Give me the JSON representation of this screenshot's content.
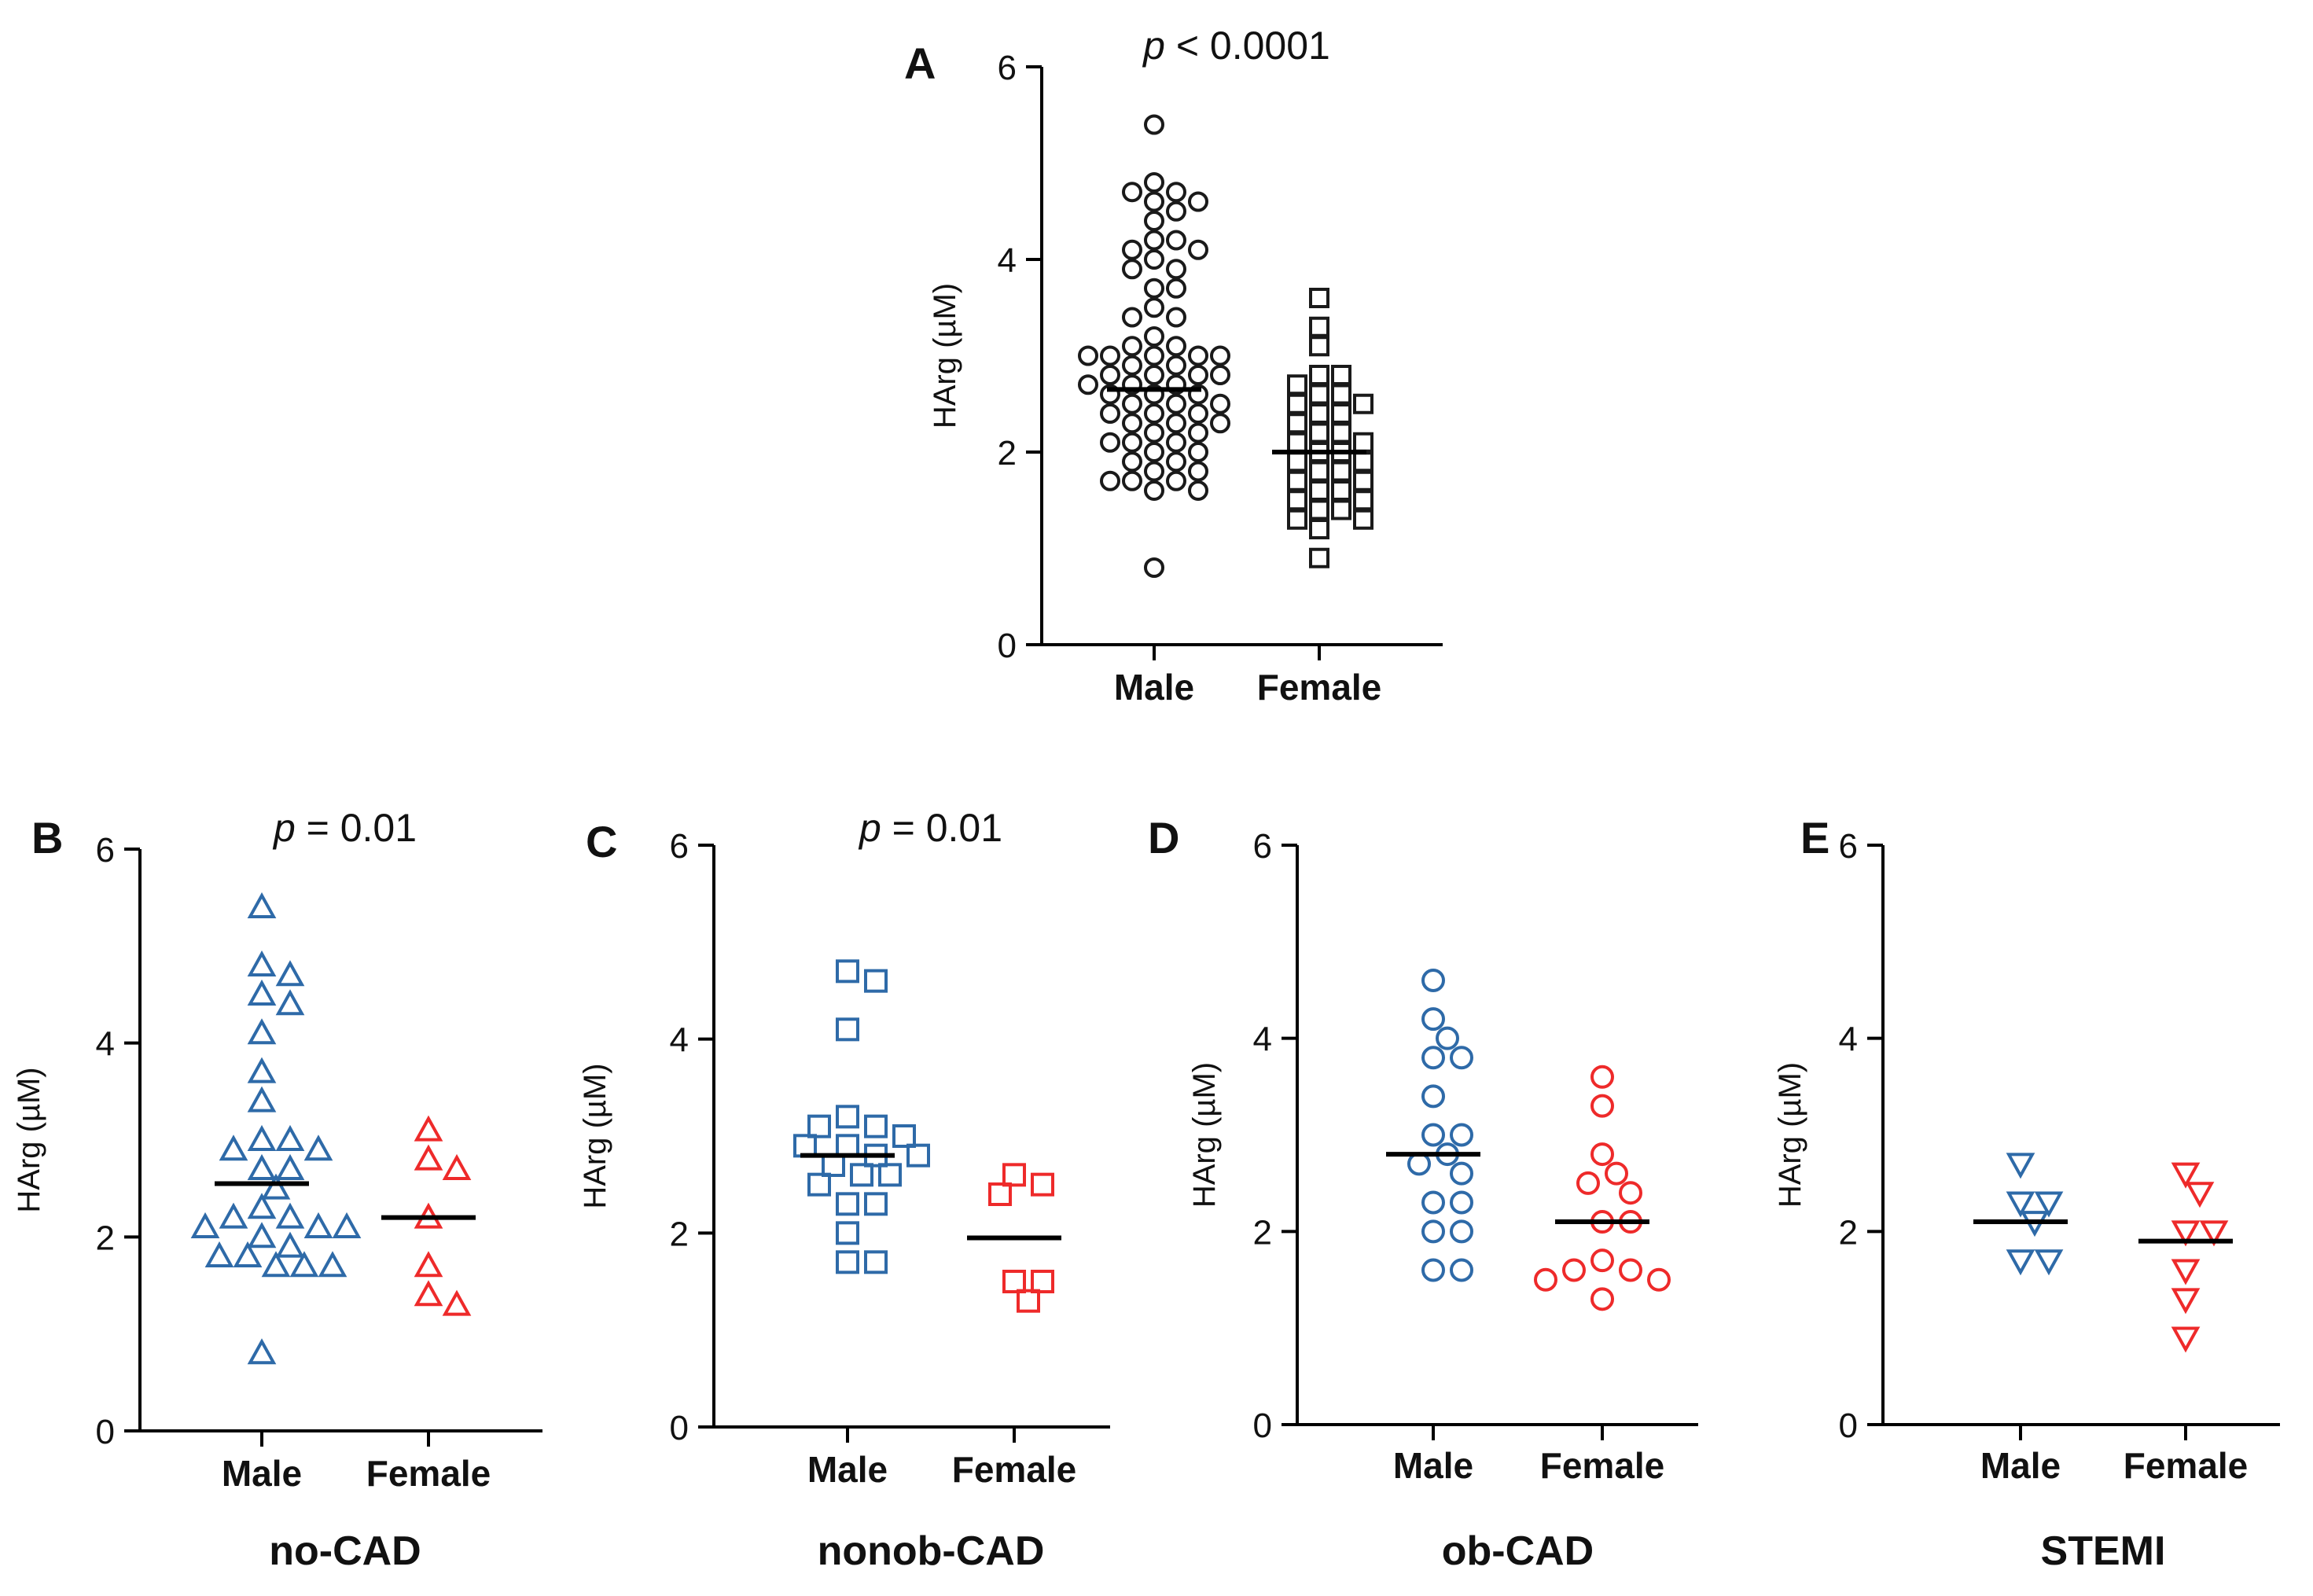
{
  "colors": {
    "axis": "#000000",
    "A": "#1a1a1a",
    "male": "#2e6aa8",
    "female": "#ee2a2a",
    "line": "#000000"
  },
  "chart_data": [
    {
      "id": "A",
      "type": "scatter",
      "panel_label": "A",
      "title": "",
      "xlabel": "",
      "ylabel": "HArg (µM)",
      "ylim": [
        0,
        6
      ],
      "yticks": [
        "0",
        "2",
        "4",
        "6"
      ],
      "categories": [
        "Male",
        "Female"
      ],
      "pvalue": {
        "p": "p",
        "rest": " < 0.0001"
      },
      "marker": "circle",
      "series": [
        {
          "name": "Male",
          "marker": "circle",
          "color": "A",
          "mean": 2.65,
          "values": [
            5.4,
            4.8,
            4.7,
            4.7,
            4.6,
            4.6,
            4.5,
            4.4,
            4.2,
            4.2,
            4.1,
            4.1,
            4.0,
            3.9,
            3.9,
            3.7,
            3.7,
            3.5,
            3.4,
            3.4,
            3.2,
            3.1,
            3.1,
            3.0,
            3.0,
            3.0,
            3.0,
            3.0,
            2.9,
            2.9,
            2.8,
            2.8,
            2.8,
            2.8,
            2.7,
            2.7,
            2.7,
            2.6,
            2.6,
            2.6,
            2.5,
            2.5,
            2.5,
            2.4,
            2.4,
            2.4,
            2.3,
            2.3,
            2.3,
            2.2,
            2.2,
            2.1,
            2.1,
            2.1,
            2.0,
            2.0,
            1.9,
            1.9,
            1.8,
            1.8,
            1.7,
            1.7,
            1.7,
            1.6,
            1.6,
            0.8
          ]
        },
        {
          "name": "Female",
          "marker": "square",
          "color": "A",
          "mean": 2.0,
          "values": [
            3.6,
            3.3,
            3.1,
            2.8,
            2.8,
            2.7,
            2.6,
            2.6,
            2.5,
            2.5,
            2.4,
            2.4,
            2.3,
            2.2,
            2.2,
            2.1,
            2.1,
            2.0,
            2.0,
            1.9,
            1.9,
            1.8,
            1.8,
            1.7,
            1.7,
            1.6,
            1.6,
            1.5,
            1.5,
            1.4,
            1.4,
            1.3,
            1.3,
            1.2,
            0.9
          ]
        }
      ]
    },
    {
      "id": "B",
      "type": "scatter",
      "panel_label": "B",
      "title": "no-CAD",
      "xlabel": "",
      "ylabel": "HArg (µM)",
      "ylim": [
        0,
        6
      ],
      "yticks": [
        "0",
        "2",
        "4",
        "6"
      ],
      "categories": [
        "Male",
        "Female"
      ],
      "pvalue": {
        "p": "p",
        "rest": " = 0.01"
      },
      "series": [
        {
          "name": "Male",
          "marker": "triangle-up",
          "color": "male",
          "mean": 2.55,
          "values": [
            5.4,
            4.8,
            4.7,
            4.5,
            4.4,
            4.1,
            3.7,
            3.4,
            3.0,
            3.0,
            2.9,
            2.9,
            2.7,
            2.7,
            2.5,
            2.3,
            2.2,
            2.2,
            2.1,
            2.1,
            2.1,
            2.0,
            1.9,
            1.8,
            1.8,
            1.7,
            1.7,
            1.7,
            0.8
          ]
        },
        {
          "name": "Female",
          "marker": "triangle-up",
          "color": "female",
          "mean": 2.2,
          "values": [
            3.1,
            2.8,
            2.7,
            2.2,
            1.7,
            1.4,
            1.3
          ]
        }
      ]
    },
    {
      "id": "C",
      "type": "scatter",
      "panel_label": "C",
      "title": "nonob-CAD",
      "xlabel": "",
      "ylabel": "HArg (µM)",
      "ylim": [
        0,
        6
      ],
      "yticks": [
        "0",
        "2",
        "4",
        "6"
      ],
      "categories": [
        "Male",
        "Female"
      ],
      "pvalue": {
        "p": "p",
        "rest": " = 0.01"
      },
      "series": [
        {
          "name": "Male",
          "marker": "square",
          "color": "male",
          "mean": 2.8,
          "values": [
            4.7,
            4.6,
            4.1,
            3.2,
            3.1,
            3.1,
            3.0,
            2.9,
            2.9,
            2.8,
            2.8,
            2.7,
            2.6,
            2.6,
            2.5,
            2.3,
            2.3,
            2.0,
            1.7,
            1.7
          ]
        },
        {
          "name": "Female",
          "marker": "square",
          "color": "female",
          "mean": 1.95,
          "values": [
            2.6,
            2.5,
            2.4,
            1.5,
            1.5,
            1.3
          ]
        }
      ]
    },
    {
      "id": "D",
      "type": "scatter",
      "panel_label": "D",
      "title": "ob-CAD",
      "xlabel": "",
      "ylabel": "HArg (µM)",
      "ylim": [
        0,
        6
      ],
      "yticks": [
        "0",
        "2",
        "4",
        "6"
      ],
      "categories": [
        "Male",
        "Female"
      ],
      "series": [
        {
          "name": "Male",
          "marker": "circle",
          "color": "male",
          "mean": 2.8,
          "values": [
            4.6,
            4.2,
            4.0,
            3.8,
            3.8,
            3.4,
            3.0,
            3.0,
            2.8,
            2.7,
            2.6,
            2.3,
            2.3,
            2.0,
            2.0,
            1.6,
            1.6
          ]
        },
        {
          "name": "Female",
          "marker": "circle",
          "color": "female",
          "mean": 2.1,
          "values": [
            3.6,
            3.3,
            2.8,
            2.6,
            2.5,
            2.4,
            2.1,
            2.1,
            1.7,
            1.6,
            1.6,
            1.5,
            1.5,
            1.3
          ]
        }
      ]
    },
    {
      "id": "E",
      "type": "scatter",
      "panel_label": "E",
      "title": "STEMI",
      "xlabel": "",
      "ylabel": "HArg (µM)",
      "ylim": [
        0,
        6
      ],
      "yticks": [
        "0",
        "2",
        "4",
        "6"
      ],
      "categories": [
        "Male",
        "Female"
      ],
      "series": [
        {
          "name": "Male",
          "marker": "triangle-down",
          "color": "male",
          "mean": 2.1,
          "values": [
            2.7,
            2.3,
            2.3,
            2.1,
            1.7,
            1.7
          ]
        },
        {
          "name": "Female",
          "marker": "triangle-down",
          "color": "female",
          "mean": 1.9,
          "values": [
            2.6,
            2.4,
            2.0,
            2.0,
            1.6,
            1.3,
            0.9
          ]
        }
      ]
    }
  ]
}
